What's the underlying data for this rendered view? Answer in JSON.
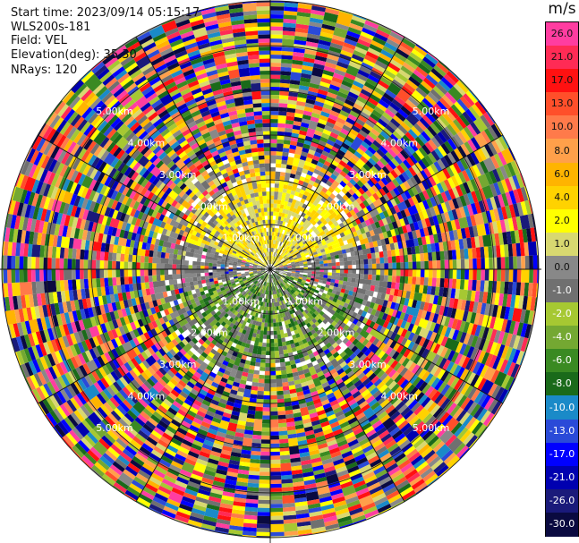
{
  "header": {
    "start_time": "Start time: 2023/09/14 05:15:17",
    "instrument": "WLS200s-181",
    "field": "Field: VEL",
    "elevation": "Elevation(deg): 35.30",
    "nrays": "NRays: 120"
  },
  "colorbar": {
    "unit": "m/s",
    "labels": [
      "26.0",
      "21.0",
      "17.0",
      "13.0",
      "10.0",
      "8.0",
      "6.0",
      "4.0",
      "2.0",
      "1.0",
      "0.0",
      "-1.0",
      "-2.0",
      "-4.0",
      "-6.0",
      "-8.0",
      "-10.0",
      "-13.0",
      "-17.0",
      "-21.0",
      "-26.0",
      "-30.0"
    ],
    "colors": [
      "#ff3da0",
      "#ff2b55",
      "#ff1111",
      "#ff4f2a",
      "#ff7a4a",
      "#ffa04a",
      "#ffb400",
      "#ffd200",
      "#ffff00",
      "#d8d870",
      "#888888",
      "#707070",
      "#a6c832",
      "#74a832",
      "#3a8a22",
      "#1a6a1a",
      "#1a8ac8",
      "#2a4ad8",
      "#0000ff",
      "#0000b0",
      "#1a1a7a",
      "#0a0a40"
    ],
    "label_dark": [
      false,
      false,
      false,
      false,
      false,
      false,
      false,
      false,
      false,
      false,
      false,
      true,
      true,
      true,
      true,
      true,
      true,
      true,
      true,
      true,
      true,
      true
    ]
  },
  "chart_data": {
    "type": "heatmap",
    "projection": "polar PPI",
    "field": "VEL",
    "unit": "m/s",
    "nrays": 120,
    "elevation_deg": 35.3,
    "vmin": -30.0,
    "vmax": 26.0,
    "max_range_km": 6.0,
    "range_ring_labels": [
      "1.00km",
      "2.00km",
      "3.00km",
      "4.00km",
      "5.00km"
    ],
    "pattern": [
      {
        "sector": "north",
        "range_km": [
          0.2,
          2.5
        ],
        "velocity": [
          1.0,
          4.0
        ]
      },
      {
        "sector": "south",
        "range_km": [
          0.2,
          2.5
        ],
        "velocity": [
          -4.0,
          -1.0
        ]
      },
      {
        "sector": "east-west",
        "range_km": [
          0.2,
          2.5
        ],
        "velocity": [
          -1.0,
          1.0
        ]
      },
      {
        "sector": "all",
        "range_km": [
          2.5,
          6.0
        ],
        "velocity": "noise"
      }
    ]
  }
}
